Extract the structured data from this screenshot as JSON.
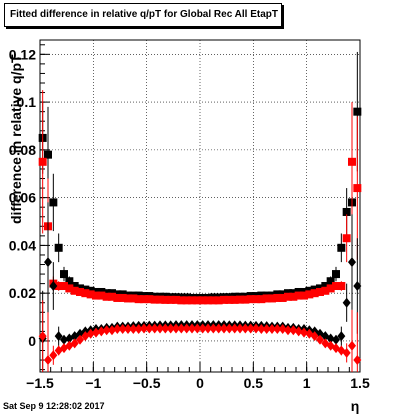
{
  "title": "Fitted difference in relative q/pT for Global Rec All EtapT",
  "footer": "Sat Sep  9 12:28:02 2017",
  "chart_data": {
    "type": "scatter",
    "title": "Fitted difference in relative q/pT for Global Rec All EtapT",
    "xlabel": "η",
    "ylabel": "difference in relative q/pT",
    "xlim": [
      -1.5,
      1.5
    ],
    "ylim": [
      -0.013,
      0.126
    ],
    "xticks": [
      "−1.5",
      "−1",
      "−0.5",
      "0",
      "0.5",
      "1",
      "1.5"
    ],
    "xtick_values": [
      -1.5,
      -1,
      -0.5,
      0,
      0.5,
      1,
      1.5
    ],
    "yticks": [
      "0",
      "0.02",
      "0.04",
      "0.06",
      "0.08",
      "0.1",
      "0.12"
    ],
    "ytick_values": [
      0,
      0.02,
      0.04,
      0.06,
      0.08,
      0.1,
      0.12
    ],
    "grid": true,
    "colors": {
      "black_series": "#000000",
      "red_series": "#ff0000"
    },
    "series": [
      {
        "marker": "square",
        "color": "#000000",
        "x": [
          -1.475,
          -1.425,
          -1.375,
          -1.325,
          -1.275,
          -1.225,
          -1.175,
          -1.125,
          -1.075,
          -1.025,
          -0.975,
          -0.925,
          -0.875,
          -0.825,
          -0.775,
          -0.725,
          -0.675,
          -0.625,
          -0.575,
          -0.525,
          -0.475,
          -0.425,
          -0.375,
          -0.325,
          -0.275,
          -0.225,
          -0.175,
          -0.125,
          -0.075,
          -0.025,
          0.025,
          0.075,
          0.125,
          0.175,
          0.225,
          0.275,
          0.325,
          0.375,
          0.425,
          0.475,
          0.525,
          0.575,
          0.625,
          0.675,
          0.725,
          0.775,
          0.825,
          0.875,
          0.925,
          0.975,
          1.025,
          1.075,
          1.125,
          1.175,
          1.225,
          1.275,
          1.325,
          1.375,
          1.425,
          1.475
        ],
        "y": [
          0.085,
          0.078,
          0.058,
          0.039,
          0.028,
          0.025,
          0.023,
          0.022,
          0.0215,
          0.021,
          0.0205,
          0.0205,
          0.02,
          0.02,
          0.0195,
          0.0195,
          0.019,
          0.019,
          0.019,
          0.0188,
          0.0188,
          0.0185,
          0.0185,
          0.0185,
          0.0183,
          0.0183,
          0.0182,
          0.0182,
          0.018,
          0.018,
          0.018,
          0.018,
          0.0182,
          0.0182,
          0.0183,
          0.0183,
          0.0185,
          0.0185,
          0.0185,
          0.0188,
          0.0188,
          0.019,
          0.019,
          0.019,
          0.0195,
          0.0195,
          0.02,
          0.02,
          0.0205,
          0.0205,
          0.021,
          0.0215,
          0.022,
          0.023,
          0.025,
          0.028,
          0.039,
          0.054,
          0.058,
          0.096
        ],
        "yerr": [
          0.015,
          0.02,
          0.012,
          0.006,
          0.003,
          0.002,
          0.0015,
          0.001,
          0.001,
          0.001,
          0.001,
          0.001,
          0.001,
          0.001,
          0.001,
          0.001,
          0.001,
          0.001,
          0.001,
          0.001,
          0.001,
          0.001,
          0.001,
          0.001,
          0.001,
          0.001,
          0.001,
          0.001,
          0.001,
          0.001,
          0.001,
          0.001,
          0.001,
          0.001,
          0.001,
          0.001,
          0.001,
          0.001,
          0.001,
          0.001,
          0.001,
          0.001,
          0.001,
          0.001,
          0.001,
          0.001,
          0.001,
          0.001,
          0.001,
          0.001,
          0.001,
          0.001,
          0.001,
          0.0015,
          0.002,
          0.003,
          0.006,
          0.01,
          0.012,
          0.025
        ]
      },
      {
        "marker": "square",
        "color": "#ff0000",
        "x": [
          -1.475,
          -1.425,
          -1.375,
          -1.325,
          -1.275,
          -1.225,
          -1.175,
          -1.125,
          -1.075,
          -1.025,
          -0.975,
          -0.925,
          -0.875,
          -0.825,
          -0.775,
          -0.725,
          -0.675,
          -0.625,
          -0.575,
          -0.525,
          -0.475,
          -0.425,
          -0.375,
          -0.325,
          -0.275,
          -0.225,
          -0.175,
          -0.125,
          -0.075,
          -0.025,
          0.025,
          0.075,
          0.125,
          0.175,
          0.225,
          0.275,
          0.325,
          0.375,
          0.425,
          0.475,
          0.525,
          0.575,
          0.625,
          0.675,
          0.725,
          0.775,
          0.825,
          0.875,
          0.925,
          0.975,
          1.025,
          1.075,
          1.125,
          1.175,
          1.225,
          1.275,
          1.325,
          1.375,
          1.425,
          1.475
        ],
        "y": [
          0.075,
          0.048,
          0.024,
          0.023,
          0.023,
          0.022,
          0.021,
          0.0205,
          0.02,
          0.0195,
          0.019,
          0.019,
          0.0185,
          0.0185,
          0.018,
          0.018,
          0.0178,
          0.0178,
          0.0175,
          0.0175,
          0.0175,
          0.0173,
          0.0173,
          0.0172,
          0.0172,
          0.0172,
          0.017,
          0.017,
          0.017,
          0.017,
          0.017,
          0.017,
          0.017,
          0.017,
          0.0172,
          0.0172,
          0.0172,
          0.0173,
          0.0173,
          0.0175,
          0.0175,
          0.0175,
          0.0178,
          0.0178,
          0.018,
          0.018,
          0.0185,
          0.0185,
          0.019,
          0.019,
          0.0195,
          0.02,
          0.0205,
          0.021,
          0.022,
          0.023,
          0.023,
          0.043,
          0.075,
          0.064
        ],
        "yerr": [
          0.03,
          0.02,
          0.003,
          0.002,
          0.0015,
          0.001,
          0.001,
          0.001,
          0.001,
          0.001,
          0.001,
          0.001,
          0.001,
          0.001,
          0.001,
          0.001,
          0.001,
          0.001,
          0.001,
          0.001,
          0.001,
          0.001,
          0.001,
          0.001,
          0.001,
          0.001,
          0.001,
          0.001,
          0.001,
          0.001,
          0.001,
          0.001,
          0.001,
          0.001,
          0.001,
          0.001,
          0.001,
          0.001,
          0.001,
          0.001,
          0.001,
          0.001,
          0.001,
          0.001,
          0.001,
          0.001,
          0.001,
          0.001,
          0.001,
          0.001,
          0.001,
          0.001,
          0.001,
          0.001,
          0.001,
          0.0015,
          0.002,
          0.01,
          0.025,
          0.03
        ]
      },
      {
        "marker": "diamond",
        "color": "#000000",
        "x": [
          -1.475,
          -1.425,
          -1.375,
          -1.325,
          -1.275,
          -1.225,
          -1.175,
          -1.125,
          -1.075,
          -1.025,
          -0.975,
          -0.925,
          -0.875,
          -0.825,
          -0.775,
          -0.725,
          -0.675,
          -0.625,
          -0.575,
          -0.525,
          -0.475,
          -0.425,
          -0.375,
          -0.325,
          -0.275,
          -0.225,
          -0.175,
          -0.125,
          -0.075,
          -0.025,
          0.025,
          0.075,
          0.125,
          0.175,
          0.225,
          0.275,
          0.325,
          0.375,
          0.425,
          0.475,
          0.525,
          0.575,
          0.625,
          0.675,
          0.725,
          0.775,
          0.825,
          0.875,
          0.925,
          0.975,
          1.025,
          1.075,
          1.125,
          1.175,
          1.225,
          1.275,
          1.325,
          1.375,
          1.425,
          1.475
        ],
        "y": [
          0.001,
          0.033,
          0.023,
          0.002,
          0.0005,
          0.001,
          0.002,
          0.003,
          0.004,
          0.0045,
          0.005,
          0.005,
          0.0055,
          0.0055,
          0.006,
          0.006,
          0.006,
          0.0062,
          0.0063,
          0.0063,
          0.0064,
          0.0064,
          0.0065,
          0.0065,
          0.0065,
          0.0066,
          0.0066,
          0.0066,
          0.0066,
          0.0066,
          0.0066,
          0.0066,
          0.0066,
          0.0066,
          0.0066,
          0.0065,
          0.0065,
          0.0065,
          0.0064,
          0.0064,
          0.0063,
          0.0063,
          0.0062,
          0.006,
          0.006,
          0.006,
          0.0055,
          0.0055,
          0.005,
          0.005,
          0.0045,
          0.004,
          0.003,
          0.002,
          0.001,
          0.0005,
          0.002,
          0.016,
          0.033,
          0.023
        ],
        "yerr": [
          0.02,
          0.025,
          0.01,
          0.004,
          0.002,
          0.0015,
          0.001,
          0.001,
          0.001,
          0.001,
          0.001,
          0.001,
          0.001,
          0.001,
          0.001,
          0.001,
          0.001,
          0.001,
          0.001,
          0.001,
          0.001,
          0.001,
          0.001,
          0.001,
          0.001,
          0.001,
          0.001,
          0.001,
          0.001,
          0.001,
          0.001,
          0.001,
          0.001,
          0.001,
          0.001,
          0.001,
          0.001,
          0.001,
          0.001,
          0.001,
          0.001,
          0.001,
          0.001,
          0.001,
          0.001,
          0.001,
          0.001,
          0.001,
          0.001,
          0.001,
          0.001,
          0.001,
          0.001,
          0.001,
          0.0015,
          0.002,
          0.004,
          0.008,
          0.02,
          0.02
        ]
      },
      {
        "marker": "diamond",
        "color": "#ff0000",
        "x": [
          -1.475,
          -1.425,
          -1.375,
          -1.325,
          -1.275,
          -1.225,
          -1.175,
          -1.125,
          -1.075,
          -1.025,
          -0.975,
          -0.925,
          -0.875,
          -0.825,
          -0.775,
          -0.725,
          -0.675,
          -0.625,
          -0.575,
          -0.525,
          -0.475,
          -0.425,
          -0.375,
          -0.325,
          -0.275,
          -0.225,
          -0.175,
          -0.125,
          -0.075,
          -0.025,
          0.025,
          0.075,
          0.125,
          0.175,
          0.225,
          0.275,
          0.325,
          0.375,
          0.425,
          0.475,
          0.525,
          0.575,
          0.625,
          0.675,
          0.725,
          0.775,
          0.825,
          0.875,
          0.925,
          0.975,
          1.025,
          1.075,
          1.125,
          1.175,
          1.225,
          1.275,
          1.325,
          1.375,
          1.425,
          1.475
        ],
        "y": [
          0.002,
          -0.008,
          -0.006,
          -0.004,
          -0.003,
          -0.002,
          -0.001,
          0.0005,
          0.002,
          0.003,
          0.0035,
          0.004,
          0.0045,
          0.0045,
          0.005,
          0.005,
          0.005,
          0.005,
          0.005,
          0.0052,
          0.0052,
          0.0052,
          0.0052,
          0.0052,
          0.0052,
          0.0052,
          0.0052,
          0.0052,
          0.0052,
          0.0052,
          0.0052,
          0.0052,
          0.0052,
          0.0052,
          0.0052,
          0.0052,
          0.0052,
          0.0052,
          0.0052,
          0.0052,
          0.0052,
          0.005,
          0.005,
          0.005,
          0.005,
          0.005,
          0.0045,
          0.0045,
          0.004,
          0.0035,
          0.003,
          0.002,
          0.0005,
          -0.001,
          -0.002,
          -0.003,
          -0.004,
          -0.005,
          -0.002,
          -0.008
        ],
        "yerr": [
          0.015,
          0.02,
          0.004,
          0.002,
          0.0015,
          0.001,
          0.001,
          0.001,
          0.001,
          0.001,
          0.001,
          0.001,
          0.001,
          0.001,
          0.001,
          0.001,
          0.001,
          0.001,
          0.001,
          0.001,
          0.001,
          0.001,
          0.001,
          0.001,
          0.001,
          0.001,
          0.001,
          0.001,
          0.001,
          0.001,
          0.001,
          0.001,
          0.001,
          0.001,
          0.001,
          0.001,
          0.001,
          0.001,
          0.001,
          0.001,
          0.001,
          0.001,
          0.001,
          0.001,
          0.001,
          0.001,
          0.001,
          0.001,
          0.001,
          0.001,
          0.001,
          0.001,
          0.001,
          0.001,
          0.001,
          0.0015,
          0.002,
          0.004,
          0.015,
          0.02
        ]
      }
    ]
  }
}
